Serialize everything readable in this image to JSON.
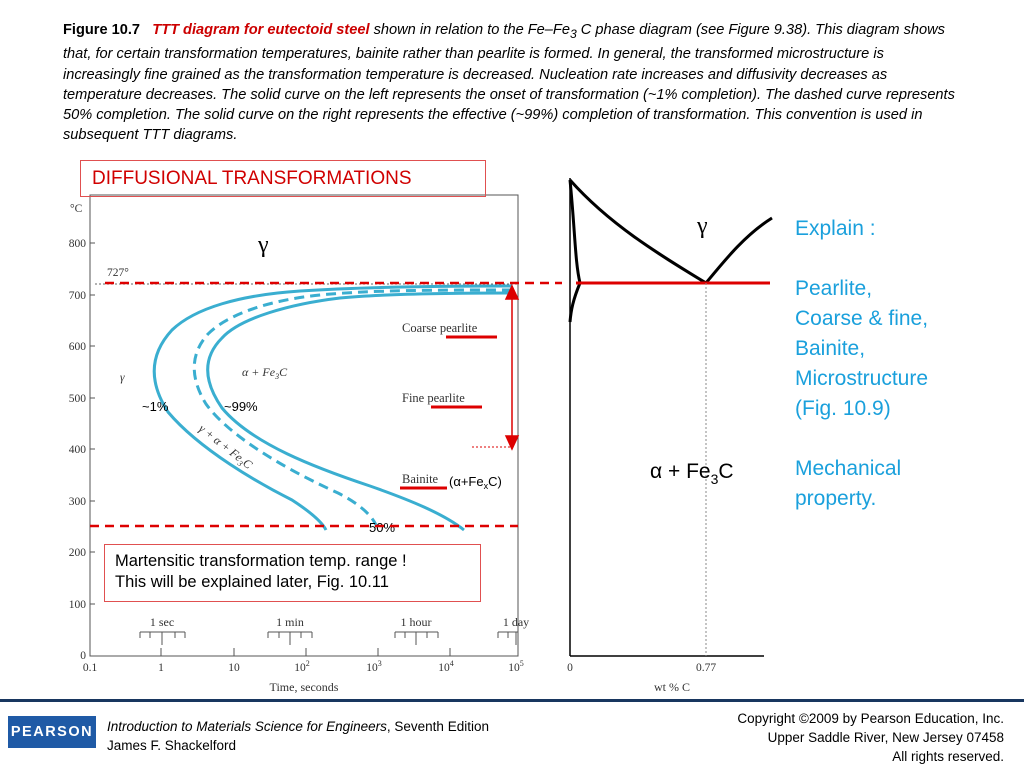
{
  "caption": {
    "figure_number": "Figure 10.7",
    "title": "TTT diagram for eutectoid steel",
    "text_1": " shown in relation to the Fe–Fe",
    "text_sub": "3",
    "text_2": " C phase diagram (see Figure 9.38). This diagram shows that, for certain transformation temperatures, bainite rather than pearlite is formed. In general, the transformed microstructure is increasingly fine grained as the transformation temperature is decreased. Nucleation rate increases and diffusivity decreases as temperature decreases. The solid curve on the left represents the onset of transformation (~1% completion). The dashed curve represents 50% completion. The solid curve on the right represents the effective (~99%) completion of transformation. This convention is used in subsequent TTT diagrams."
  },
  "annotations": {
    "diffusional_title": "DIFFUSIONAL TRANSFORMATIONS",
    "martensite_line1": "Martensitic transformation temp. range !",
    "martensite_line2": "This will be explained later, Fig. 10.11",
    "onset_label": "~1%",
    "completion_label": "~99%",
    "half_label": "50%",
    "bainite_phase_open": "(α+Fe",
    "bainite_phase_sub": "x",
    "bainite_phase_close": "C)",
    "gamma_symbol_large": "γ",
    "colors": {
      "red": "#dd0000",
      "curve_blue": "#3aaed0",
      "text_blue": "#1aa0dc"
    }
  },
  "ttt_diagram": {
    "y_unit": "°C",
    "y_ticks": [
      "0",
      "100",
      "200",
      "300",
      "400",
      "500",
      "600",
      "700",
      "800"
    ],
    "eutectoid_temp_label": "727°",
    "x_ticks": [
      {
        "base": "0.1",
        "exp": ""
      },
      {
        "base": "1",
        "exp": ""
      },
      {
        "base": "10",
        "exp": ""
      },
      {
        "base": "10",
        "exp": "2"
      },
      {
        "base": "10",
        "exp": "3"
      },
      {
        "base": "10",
        "exp": "4"
      },
      {
        "base": "10",
        "exp": "5"
      }
    ],
    "x_axis_label": "Time, seconds",
    "time_markers": [
      "1 sec",
      "1 min",
      "1 hour",
      "1 day"
    ],
    "region_gamma": "γ",
    "region_pearlite_label": "α + Fe",
    "region_pearlite_sub": "3",
    "region_pearlite_end": "C",
    "region_mixed_label": "γ + α + Fe",
    "region_mixed_sub": "3",
    "region_mixed_end": "C",
    "microstructure_labels": [
      "Coarse pearlite",
      "Fine pearlite",
      "Bainite"
    ]
  },
  "phase_diagram": {
    "gamma_label": "γ",
    "alpha_label": "α + Fe",
    "alpha_sub": "3",
    "alpha_end": "C",
    "x_ticks": [
      "0",
      "0.77"
    ],
    "x_axis_label": "wt % C"
  },
  "explain_panel": {
    "heading": "Explain :",
    "items": [
      "Pearlite,",
      "Coarse & fine,",
      "Bainite,",
      "Microstructure",
      "(Fig. 10.9)"
    ],
    "mechanical_line1": "Mechanical",
    "mechanical_line2": "property."
  },
  "footer": {
    "logo": "PEARSON",
    "book_title": "Introduction to Materials Science for Engineers",
    "book_edition": ", Seventh Edition",
    "author": "James F. Shackelford",
    "copyright_line1": "Copyright ©2009 by Pearson Education, Inc.",
    "copyright_line2": "Upper Saddle River, New Jersey 07458",
    "copyright_line3": "All rights reserved."
  }
}
